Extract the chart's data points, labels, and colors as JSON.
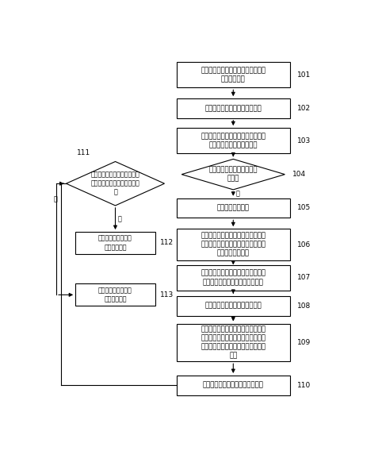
{
  "bg_color": "#ffffff",
  "box_edge_color": "#000000",
  "text_color": "#000000",
  "label_color": "#000000",
  "boxes_right": [
    {
      "id": "101",
      "text": "根据每个红外发射管的位置坐标绘制\n背景线光路图",
      "lines": 2
    },
    {
      "id": "102",
      "text": "绘制有触摸点时的扫描线光路图",
      "lines": 1
    },
    {
      "id": "103",
      "text": "将所述扫描线光路图与背景线光路图\n相比对，确定被遮挡的光线",
      "lines": 2
    },
    {
      "id": "104",
      "text": "判断所被遮挡的光线是否属\n于主轴",
      "lines": 2,
      "type": "diamond"
    },
    {
      "id": "105",
      "text": "确定待定触摸区域",
      "lines": 1
    },
    {
      "id": "106",
      "text": "将所有扫描线与待定触摸区域进行快\n速排斥实验，排除与所述待定触摸区\n域不相交的扫描线",
      "lines": 3
    },
    {
      "id": "107",
      "text": "在待定触摸区域内进行跨立实验，获\n取与待定触摸区域可能相交的线段",
      "lines": 2
    },
    {
      "id": "108",
      "text": "绘制有触摸点时的扫描线光路图",
      "lines": 1
    },
    {
      "id": "109",
      "text": "根据所述线段获取斜率值最大的侧边\n界线，所述侧边界线与待定触摸区域\n的上边界和下边界分别围成多个凸多\n边形",
      "lines": 4
    },
    {
      "id": "110",
      "text": "确定所述多个凸多边形的相交区域",
      "lines": 1
    }
  ],
  "boxes_left": [
    {
      "id": "111",
      "text": "判断所述多个凸多边形的相交\n区域的面积是否大于预设的阈\n值",
      "lines": 3,
      "type": "diamond"
    },
    {
      "id": "112",
      "text": "则判定所述相交区域\n为真实融摸点",
      "lines": 2
    },
    {
      "id": "113",
      "text": "则判定所述相交区域\n为真实融摸点",
      "lines": 2
    }
  ],
  "yes_text": "是",
  "no_text": "否",
  "font_size": 6.2,
  "small_font_size": 5.8,
  "num_font_size": 6.5
}
